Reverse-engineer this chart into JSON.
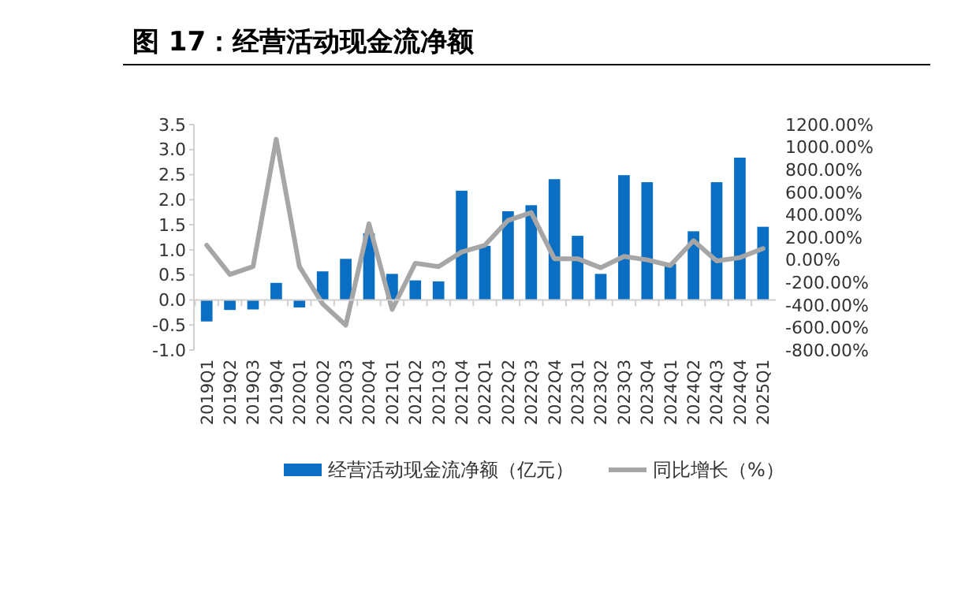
{
  "chart_data": {
    "type": "bar",
    "title": "图 17：经营活动现金流净额",
    "categories": [
      "2019Q1",
      "2019Q2",
      "2019Q3",
      "2019Q4",
      "2020Q1",
      "2020Q2",
      "2020Q3",
      "2020Q4",
      "2021Q1",
      "2021Q2",
      "2021Q3",
      "2021Q4",
      "2022Q1",
      "2022Q2",
      "2022Q3",
      "2022Q4",
      "2023Q1",
      "2023Q2",
      "2023Q3",
      "2023Q4",
      "2024Q1",
      "2024Q2",
      "2024Q3",
      "2024Q4",
      "2025Q1"
    ],
    "series": [
      {
        "name": "经营活动现金流净额（亿元）",
        "color": "#0a6fc2",
        "values": [
          -0.43,
          -0.2,
          -0.19,
          0.34,
          -0.15,
          0.57,
          0.82,
          1.33,
          0.52,
          0.39,
          0.37,
          2.18,
          1.08,
          1.77,
          1.89,
          2.41,
          1.28,
          0.52,
          2.49,
          2.35,
          0.72,
          1.37,
          2.35,
          2.84,
          1.46
        ]
      },
      {
        "name": "同比增长（%）",
        "type": "line",
        "axis": "y2",
        "color": "#a6a6a6",
        "values": [
          130,
          -130,
          -60,
          1070,
          -60,
          -390,
          -580,
          320,
          -440,
          -30,
          -60,
          70,
          130,
          350,
          420,
          10,
          10,
          -70,
          30,
          0,
          -50,
          170,
          -10,
          20,
          100
        ]
      }
    ],
    "ylim": [
      -1,
      3.5
    ],
    "yticks": [
      {
        "value": -1,
        "label": "-1.0"
      },
      {
        "value": -0.5,
        "label": "-0.5"
      },
      {
        "value": 0,
        "label": "0.0"
      },
      {
        "value": 0.5,
        "label": "0.5"
      },
      {
        "value": 1,
        "label": "1.0"
      },
      {
        "value": 1.5,
        "label": "1.5"
      },
      {
        "value": 2,
        "label": "2.0"
      },
      {
        "value": 2.5,
        "label": "2.5"
      },
      {
        "value": 3,
        "label": "3.0"
      },
      {
        "value": 3.5,
        "label": "3.5"
      }
    ],
    "y2lim": [
      -800,
      1200
    ],
    "y2ticks": [
      {
        "value": -800,
        "label": "-800.00%"
      },
      {
        "value": -600,
        "label": "-600.00%"
      },
      {
        "value": -400,
        "label": "-400.00%"
      },
      {
        "value": -200,
        "label": "-200.00%"
      },
      {
        "value": 0,
        "label": "0.00%"
      },
      {
        "value": 200,
        "label": "200.00%"
      },
      {
        "value": 400,
        "label": "400.00%"
      },
      {
        "value": 600,
        "label": "600.00%"
      },
      {
        "value": 800,
        "label": "800.00%"
      },
      {
        "value": 1000,
        "label": "1000.00%"
      },
      {
        "value": 1200,
        "label": "1200.00%"
      }
    ],
    "legend": "bottom"
  }
}
